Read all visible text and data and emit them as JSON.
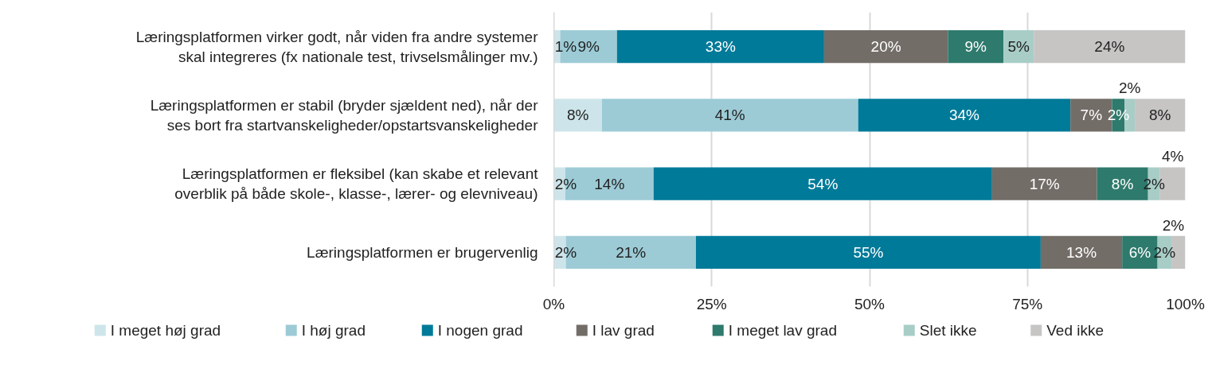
{
  "chart_data": {
    "type": "bar",
    "orientation": "horizontal",
    "stacked": true,
    "categories": [
      "Læringsplatformen virker godt, når viden fra andre systemer skal integreres (fx nationale test, trivselsmålinger mv.)",
      "Læringsplatformen er stabil (bryder sjældent ned), når der ses bort fra startvanskeligheder/opstartsvanskeligheder",
      "Læringsplatformen er fleksibel (kan skabe et relevant overblik på både skole-, klasse-, lærer- og elevniveau)",
      "Læringsplatformen er brugervenlig"
    ],
    "series": [
      {
        "name": "I meget høj grad",
        "color": "#cde5ea",
        "values": [
          1.0,
          7.6,
          1.8,
          1.9
        ],
        "value_labels": [
          "1%",
          "8%",
          "2%",
          "2%"
        ]
      },
      {
        "name": "I høj grad",
        "color": "#9ccbd6",
        "values": [
          9.0,
          40.6,
          14.0,
          20.6
        ],
        "value_labels": [
          "9%",
          "41%",
          "14%",
          "21%"
        ]
      },
      {
        "name": "I nogen grad",
        "color": "#007a99",
        "values": [
          32.8,
          33.6,
          53.6,
          54.6
        ],
        "value_labels": [
          "33%",
          "34%",
          "54%",
          "55%"
        ]
      },
      {
        "name": "I lav grad",
        "color": "#736d68",
        "values": [
          19.6,
          6.6,
          16.6,
          12.9
        ],
        "value_labels": [
          "20%",
          "7%",
          "17%",
          "13%"
        ]
      },
      {
        "name": "I meget lav grad",
        "color": "#2e7a6c",
        "values": [
          8.8,
          2.0,
          8.1,
          5.6
        ],
        "value_labels": [
          "9%",
          "2%",
          "8%",
          "6%"
        ]
      },
      {
        "name": "Slet ikke",
        "color": "#a8cdc7",
        "values": [
          4.8,
          1.6,
          1.9,
          2.2
        ],
        "value_labels": [
          "5%",
          "2%",
          "2%",
          "2%"
        ]
      },
      {
        "name": "Ved ikke",
        "color": "#c6c5c4",
        "values": [
          24.0,
          8.0,
          4.0,
          2.2
        ],
        "value_labels": [
          "24%",
          "8%",
          "4%",
          "2%"
        ]
      }
    ],
    "xlim": [
      0,
      100
    ],
    "xticks": [
      {
        "value": 0,
        "label": "0%"
      },
      {
        "value": 25,
        "label": "25%"
      },
      {
        "value": 50,
        "label": "50%"
      },
      {
        "value": 75,
        "label": "75%"
      },
      {
        "value": 100,
        "label": "100%"
      }
    ],
    "grid": "x",
    "legend": "bottom"
  }
}
